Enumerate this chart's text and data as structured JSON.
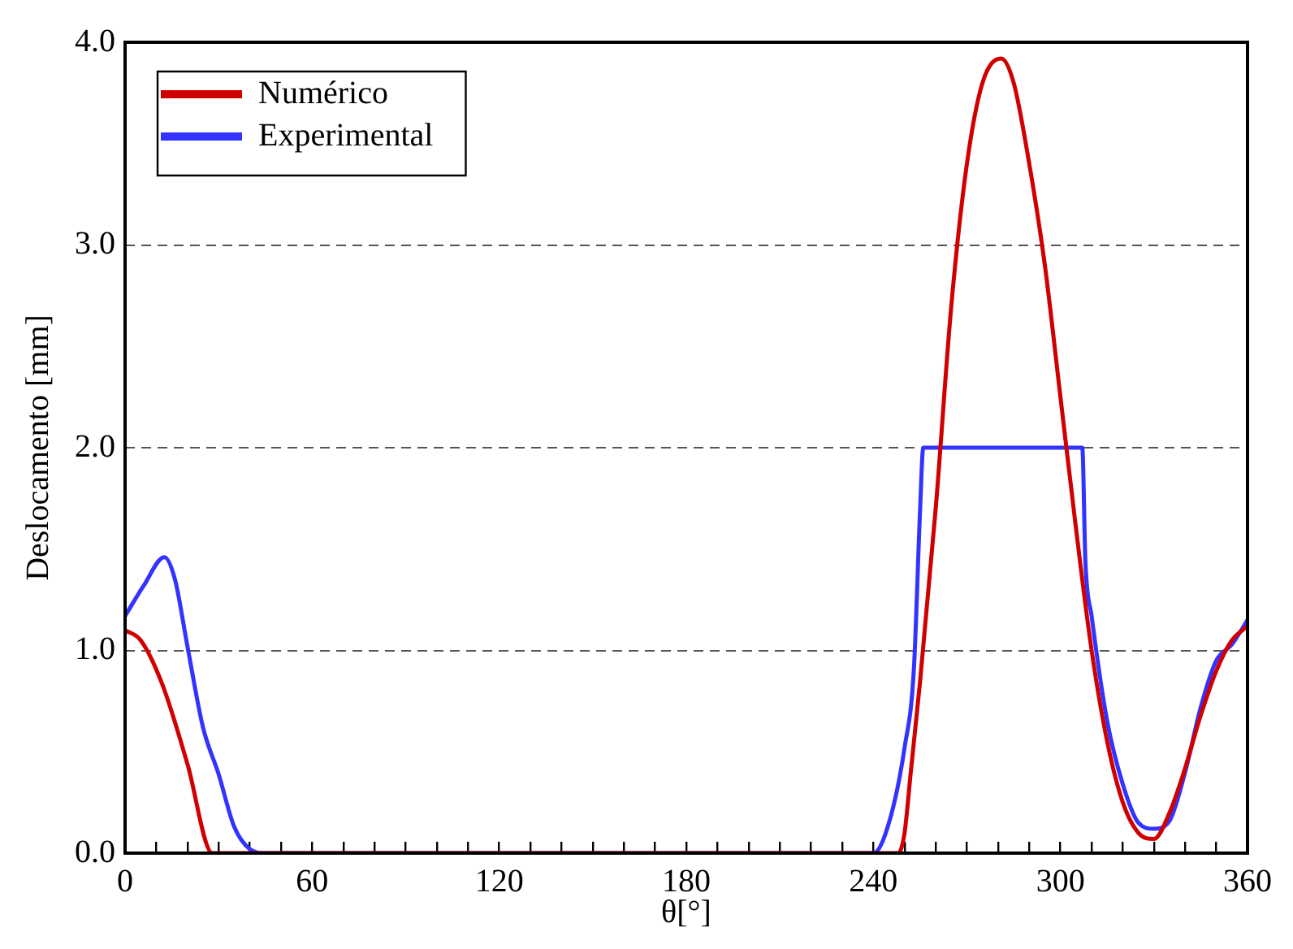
{
  "chart_data": {
    "type": "line",
    "xlabel": "θ[°]",
    "ylabel": "Deslocamento [mm]",
    "xlim": [
      0,
      360
    ],
    "ylim": [
      0,
      4
    ],
    "xticks": [
      0,
      {
        "value": 10,
        "label": null
      },
      {
        "value": 20,
        "label": null
      },
      {
        "value": 30,
        "label": null
      },
      {
        "value": 40,
        "label": null
      },
      {
        "value": 50,
        "label": null
      },
      60,
      {
        "value": 70,
        "label": null
      },
      {
        "value": 80,
        "label": null
      },
      {
        "value": 90,
        "label": null
      },
      {
        "value": 100,
        "label": null
      },
      {
        "value": 110,
        "label": null
      },
      120,
      {
        "value": 130,
        "label": null
      },
      {
        "value": 140,
        "label": null
      },
      {
        "value": 150,
        "label": null
      },
      {
        "value": 160,
        "label": null
      },
      {
        "value": 170,
        "label": null
      },
      180,
      {
        "value": 190,
        "label": null
      },
      {
        "value": 200,
        "label": null
      },
      {
        "value": 210,
        "label": null
      },
      {
        "value": 220,
        "label": null
      },
      {
        "value": 230,
        "label": null
      },
      240,
      {
        "value": 250,
        "label": null
      },
      {
        "value": 260,
        "label": null
      },
      {
        "value": 270,
        "label": null
      },
      {
        "value": 280,
        "label": null
      },
      {
        "value": 290,
        "label": null
      },
      300,
      {
        "value": 310,
        "label": null
      },
      {
        "value": 320,
        "label": null
      },
      {
        "value": 330,
        "label": null
      },
      {
        "value": 340,
        "label": null
      },
      {
        "value": 350,
        "label": null
      },
      360
    ],
    "yticks": [
      {
        "value": 0,
        "label": "0.0"
      },
      {
        "value": 1,
        "label": "1.0"
      },
      {
        "value": 2,
        "label": "2.0"
      },
      {
        "value": 3,
        "label": "3.0"
      },
      {
        "value": 4,
        "label": "4.0"
      }
    ],
    "grid": "y",
    "legend": "top left",
    "line_style": "solid",
    "marker": "none",
    "series": [
      {
        "name": "Numérico",
        "color": "#d00000",
        "x": [
          0,
          5,
          12,
          20,
          28,
          248,
          250,
          252,
          255,
          260,
          265,
          270,
          275,
          281,
          285,
          290,
          295,
          300,
          305,
          310,
          315,
          320,
          325,
          330,
          335,
          340,
          345,
          350,
          355,
          360
        ],
        "values": [
          1.1,
          1.05,
          0.83,
          0.44,
          0,
          0,
          0.1,
          0.4,
          0.85,
          1.7,
          2.7,
          3.4,
          3.8,
          3.92,
          3.8,
          3.4,
          2.9,
          2.25,
          1.6,
          1.0,
          0.55,
          0.25,
          0.1,
          0.07,
          0.2,
          0.42,
          0.68,
          0.9,
          1.05,
          1.12
        ]
      },
      {
        "name": "Experimental",
        "color": "#3333ff",
        "x": [
          0,
          6,
          12.6,
          16,
          20,
          25,
          30,
          35,
          40,
          45,
          240,
          245,
          250,
          253,
          255,
          256,
          307,
          308,
          310,
          315,
          320,
          325,
          330,
          335,
          340,
          345,
          350,
          355,
          360
        ],
        "values": [
          1.17,
          1.32,
          1.46,
          1.35,
          1.02,
          0.62,
          0.39,
          0.13,
          0.02,
          0,
          0,
          0.15,
          0.52,
          0.91,
          1.7,
          2.0,
          2.0,
          1.44,
          1.17,
          0.65,
          0.34,
          0.15,
          0.12,
          0.16,
          0.4,
          0.72,
          0.95,
          1.03,
          1.15
        ]
      }
    ]
  }
}
